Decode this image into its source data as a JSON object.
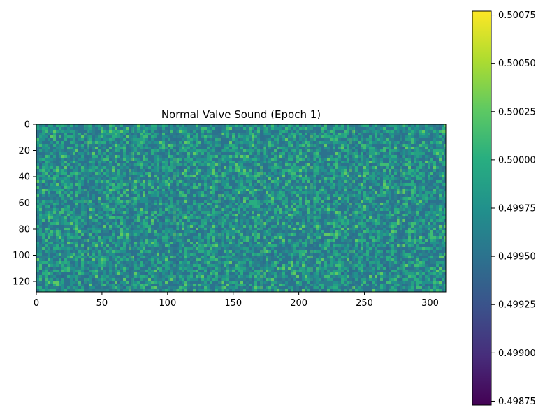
{
  "chart_data": {
    "type": "heatmap",
    "title": "Normal Valve Sound (Epoch 1)",
    "xlabel": "",
    "ylabel": "",
    "xlim": [
      0,
      312
    ],
    "ylim": [
      128,
      0
    ],
    "x_ticks": [
      "0",
      "50",
      "100",
      "150",
      "200",
      "250",
      "300"
    ],
    "y_ticks": [
      "0",
      "20",
      "40",
      "60",
      "80",
      "100",
      "120"
    ],
    "colormap": "viridis",
    "color_range": [
      0.49873,
      0.50077
    ],
    "base_color": "#2a9d8a",
    "colorbar_ticks": [
      "0.50075",
      "0.50050",
      "0.50025",
      "0.50000",
      "0.49975",
      "0.49950",
      "0.49925",
      "0.49900",
      "0.49875"
    ],
    "dark_vertical_bands_x": [
      38,
      72,
      106,
      140,
      172,
      210,
      240,
      278
    ],
    "grid": false
  }
}
